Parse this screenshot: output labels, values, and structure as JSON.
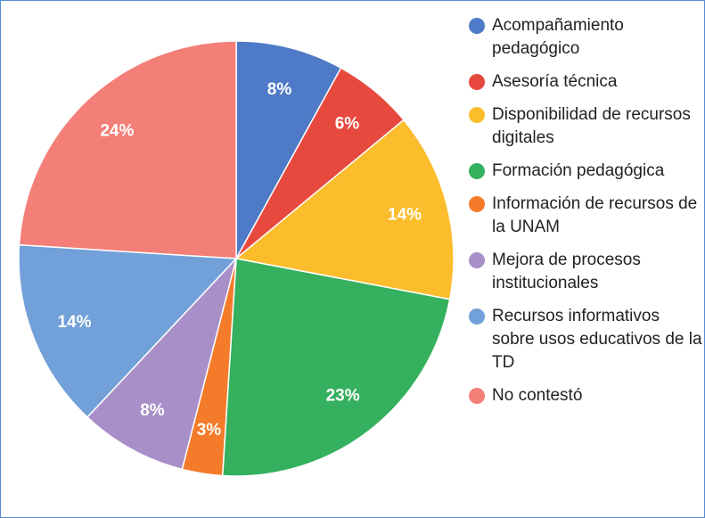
{
  "chart_data": {
    "type": "pie",
    "categories": [
      "Acompañamiento pedagógico",
      "Asesoría técnica",
      "Disponibilidad de recursos digitales",
      "Formación pedagógica",
      "Información de recursos de la UNAM",
      "Mejora de procesos institucionales",
      "Recursos informativos sobre usos educativos de la TD",
      "No contestó"
    ],
    "values": [
      8,
      6,
      14,
      23,
      3,
      8,
      14,
      24
    ],
    "value_labels": [
      "8%",
      "6%",
      "14%",
      "23%",
      "3%",
      "8%",
      "14%",
      "24%"
    ],
    "colors": [
      "#4e7ac7",
      "#e8493f",
      "#fbbd2c",
      "#34b05e",
      "#f47b2a",
      "#a98fc8",
      "#72a0d8",
      "#f37f78"
    ],
    "legend": "right"
  }
}
